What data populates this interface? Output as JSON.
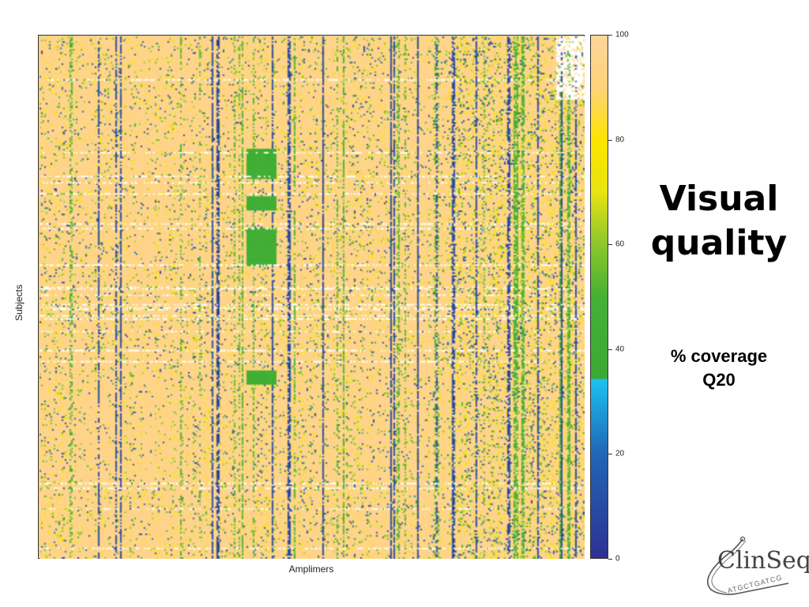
{
  "slide": {
    "title_line1": "Visual",
    "title_line2": "quality",
    "subtitle_line1": "% coverage",
    "subtitle_line2": "Q20",
    "logo_text": "ClinSeq",
    "logo_subtext": "ATGCTGATCG"
  },
  "chart_data": {
    "type": "heatmap",
    "xlabel": "Amplimers",
    "ylabel": "Subjects",
    "colorbar": {
      "min": 0,
      "max": 100,
      "ticks": [
        0,
        20,
        40,
        60,
        80,
        100
      ],
      "stops": [
        {
          "value": 0,
          "color": "#2e3192"
        },
        {
          "value": 20,
          "color": "#2166b5"
        },
        {
          "value": 30,
          "color": "#1ca7e0"
        },
        {
          "value": 34,
          "color": "#1ec0ee"
        },
        {
          "value": 34.5,
          "color": "#3aaa35"
        },
        {
          "value": 50,
          "color": "#45b035"
        },
        {
          "value": 62,
          "color": "#9ccc2a"
        },
        {
          "value": 70,
          "color": "#e8e410"
        },
        {
          "value": 80,
          "color": "#fde400"
        },
        {
          "value": 90,
          "color": "#ffd27a"
        },
        {
          "value": 100,
          "color": "#ffd59a"
        }
      ]
    },
    "typical_value": 95,
    "dominant_color": "#ffcc80"
  }
}
